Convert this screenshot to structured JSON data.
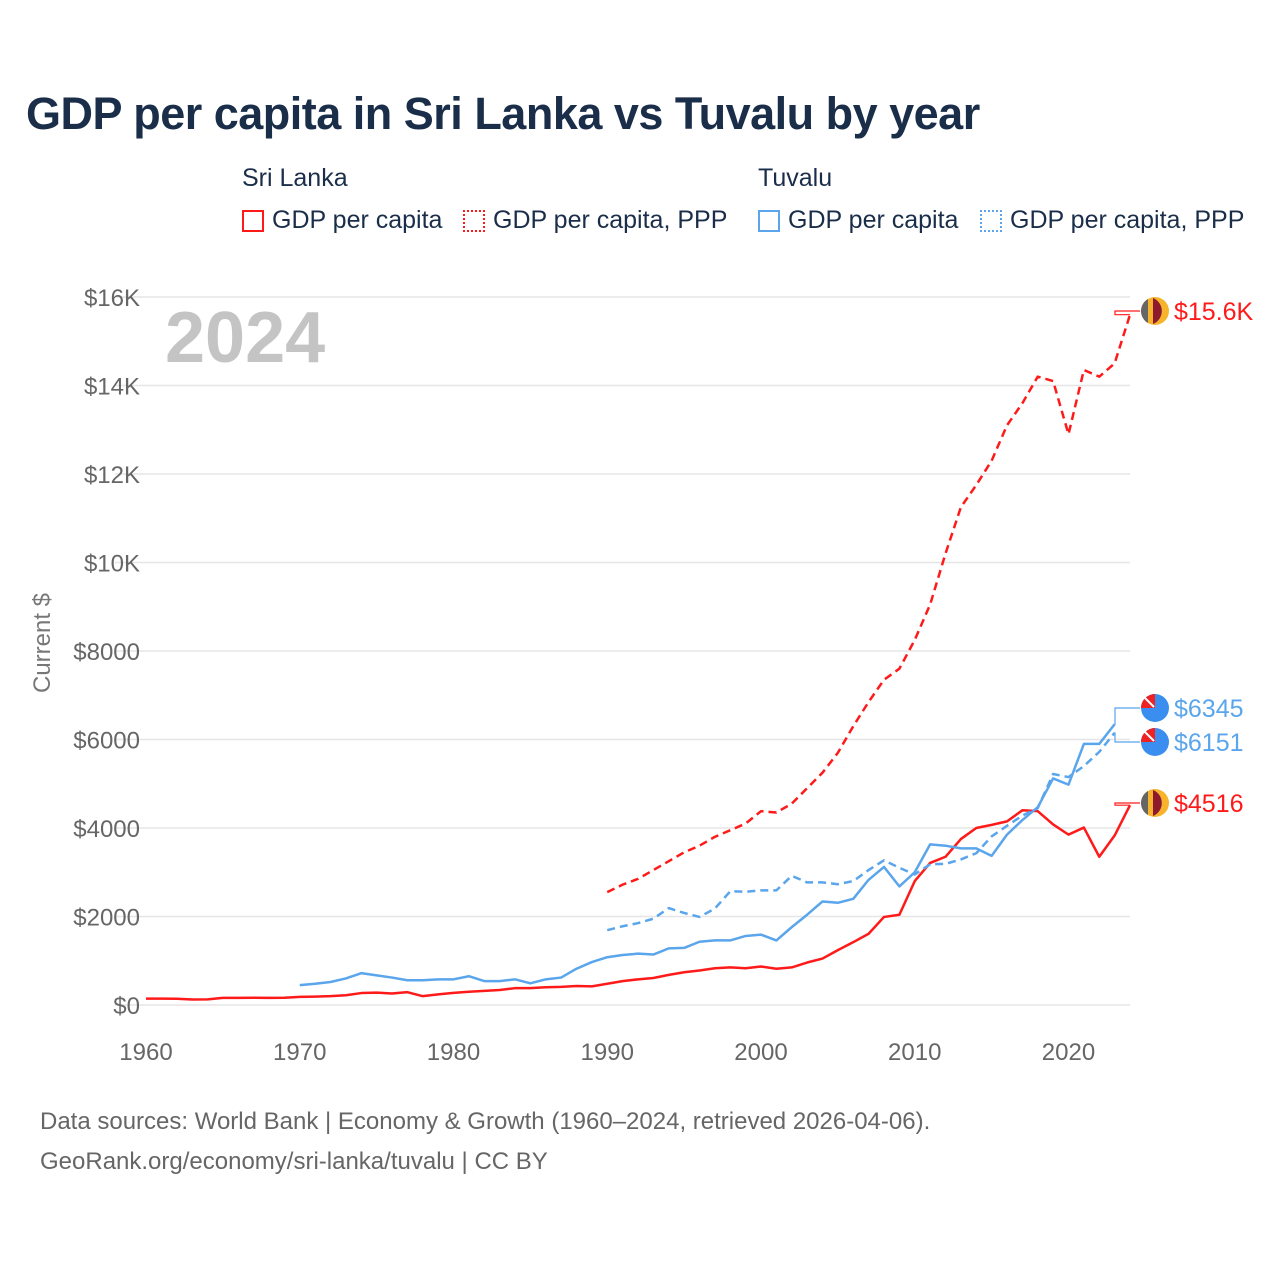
{
  "title": "GDP per capita in Sri Lanka vs Tuvalu by year",
  "legend": {
    "groups": [
      {
        "name": "Sri Lanka",
        "items": [
          "GDP per capita",
          "GDP per capita, PPP"
        ],
        "color": "#ff1a1a"
      },
      {
        "name": "Tuvalu",
        "items": [
          "GDP per capita",
          "GDP per capita, PPP"
        ],
        "color": "#5aa5ec"
      }
    ]
  },
  "year_label": "2024",
  "footer": {
    "line1": "Data sources: World Bank | Economy & Growth (1960–2024, retrieved 2026-04-06).",
    "line2": "GeoRank.org/economy/sri-lanka/tuvalu | CC BY"
  },
  "chart_data": {
    "type": "line",
    "title": "GDP per capita in Sri Lanka vs Tuvalu by year",
    "xlabel": "",
    "ylabel": "Current $",
    "xlim": [
      1960,
      2024
    ],
    "ylim": [
      0,
      16000
    ],
    "xticks": [
      1960,
      1970,
      1980,
      1990,
      2000,
      2010,
      2020
    ],
    "xtick_labels": [
      "1960",
      "1970",
      "1980",
      "1990",
      "2000",
      "2010",
      "2020"
    ],
    "yticks": [
      0,
      2000,
      4000,
      6000,
      8000,
      10000,
      12000,
      14000,
      16000
    ],
    "ytick_labels": [
      "$0",
      "$2000",
      "$4000",
      "$6000",
      "$8000",
      "$10K",
      "$12K",
      "$14K",
      "$16K"
    ],
    "grid": true,
    "legend_position": "top",
    "series": [
      {
        "name": "Sri Lanka GDP per capita",
        "color": "#ff1a1a",
        "dash": false,
        "start": 1960,
        "end_label": "$4516",
        "values": [
          143,
          145,
          140,
          125,
          127,
          160,
          162,
          165,
          160,
          165,
          183,
          190,
          200,
          220,
          270,
          280,
          260,
          290,
          200,
          240,
          275,
          300,
          320,
          340,
          380,
          380,
          400,
          410,
          430,
          420,
          480,
          540,
          580,
          610,
          680,
          740,
          780,
          830,
          850,
          830,
          870,
          820,
          850,
          960,
          1050,
          1240,
          1420,
          1610,
          1990,
          2040,
          2800,
          3210,
          3350,
          3750,
          4000,
          4070,
          4150,
          4400,
          4380,
          4080,
          3850,
          4010,
          3350,
          3830,
          4516
        ]
      },
      {
        "name": "Sri Lanka GDP per capita, PPP",
        "color": "#ff1a1a",
        "dash": true,
        "start": 1990,
        "end_label": "$15.6K",
        "values": [
          2550,
          2720,
          2850,
          3050,
          3250,
          3450,
          3600,
          3800,
          3950,
          4100,
          4380,
          4350,
          4550,
          4900,
          5250,
          5700,
          6300,
          6850,
          7350,
          7600,
          8250,
          9050,
          10200,
          11250,
          11750,
          12300,
          13100,
          13600,
          14200,
          14100,
          12900,
          14350,
          14200,
          14500,
          15600
        ]
      },
      {
        "name": "Tuvalu GDP per capita",
        "color": "#5aa5ec",
        "dash": false,
        "start": 1970,
        "end_label": "$6345",
        "values": [
          450,
          480,
          520,
          600,
          720,
          670,
          620,
          560,
          560,
          580,
          580,
          650,
          540,
          540,
          580,
          490,
          580,
          620,
          820,
          970,
          1080,
          1130,
          1160,
          1140,
          1280,
          1290,
          1430,
          1460,
          1460,
          1560,
          1590,
          1460,
          1760,
          2040,
          2340,
          2310,
          2400,
          2830,
          3120,
          2680,
          3000,
          3630,
          3600,
          3540,
          3540,
          3370,
          3850,
          4180,
          4470,
          5120,
          4980,
          5900,
          5900,
          6345
        ]
      },
      {
        "name": "Tuvalu GDP per capita, PPP",
        "color": "#5aa5ec",
        "dash": true,
        "start": 1990,
        "end_label": "$6151",
        "values": [
          1690,
          1780,
          1850,
          1950,
          2190,
          2080,
          1990,
          2180,
          2570,
          2560,
          2590,
          2590,
          2920,
          2770,
          2770,
          2730,
          2800,
          3050,
          3270,
          3100,
          2950,
          3180,
          3190,
          3290,
          3430,
          3810,
          4050,
          4280,
          4450,
          5220,
          5150,
          5400,
          5720,
          6151
        ]
      }
    ]
  }
}
